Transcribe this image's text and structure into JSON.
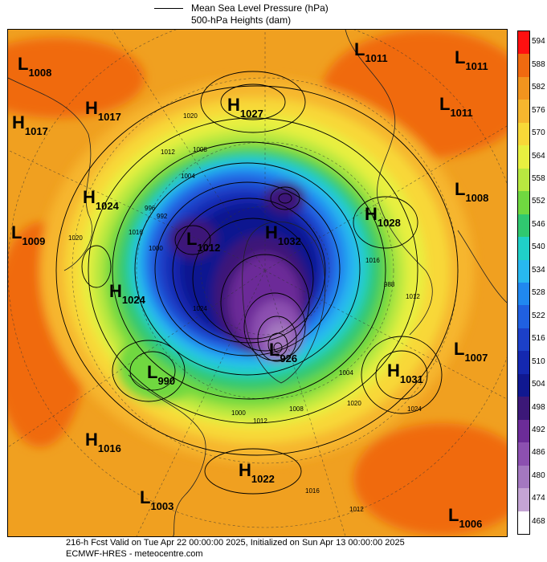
{
  "legend": {
    "items": [
      {
        "label": "Mean Sea Level Pressure (hPa)",
        "line": true
      },
      {
        "label": "500-hPa Heights (dam)",
        "line": false
      }
    ]
  },
  "colorbar": {
    "levels": [
      "594",
      "588",
      "582",
      "576",
      "570",
      "564",
      "558",
      "552",
      "546",
      "540",
      "534",
      "528",
      "522",
      "516",
      "510",
      "504",
      "498",
      "492",
      "486",
      "480",
      "474",
      "468"
    ],
    "colors": [
      "#ff1010",
      "#f06a10",
      "#f2941e",
      "#f6b62e",
      "#f8d838",
      "#e8f040",
      "#b8e840",
      "#70d840",
      "#30c870",
      "#20d0c8",
      "#28b8f0",
      "#2088f0",
      "#2060e0",
      "#1c40c8",
      "#1428b0",
      "#101890",
      "#3c1878",
      "#6c2c98",
      "#8c50b0",
      "#a478c0",
      "#c4a4d4",
      "#ffffff"
    ]
  },
  "centers": [
    {
      "type": "L",
      "value": "1008"
    },
    {
      "type": "H",
      "value": "1017"
    },
    {
      "type": "H",
      "value": "1017"
    },
    {
      "type": "H",
      "value": "1027"
    },
    {
      "type": "L",
      "value": "1011"
    },
    {
      "type": "L",
      "value": "1011"
    },
    {
      "type": "L",
      "value": "1011"
    },
    {
      "type": "H",
      "value": "1024"
    },
    {
      "type": "L",
      "value": "1008"
    },
    {
      "type": "H",
      "value": "1028"
    },
    {
      "type": "L",
      "value": "1009"
    },
    {
      "type": "L",
      "value": "1012"
    },
    {
      "type": "H",
      "value": "1032"
    },
    {
      "type": "H",
      "value": "1024"
    },
    {
      "type": "L",
      "value": "990"
    },
    {
      "type": "L",
      "value": "1007"
    },
    {
      "type": "H",
      "value": "1031"
    },
    {
      "type": "L",
      "value": "926"
    },
    {
      "type": "H",
      "value": "1016"
    },
    {
      "type": "H",
      "value": "1022"
    },
    {
      "type": "L",
      "value": "1003"
    },
    {
      "type": "L",
      "value": "1006"
    }
  ],
  "contour_labels": [
    "1020",
    "1012",
    "1008",
    "1004",
    "1016",
    "996",
    "992",
    "1000",
    "1024",
    "1020",
    "1012",
    "1016",
    "988",
    "1004",
    "1008",
    "1000",
    "1012",
    "1024",
    "1020",
    "1016",
    "1012"
  ],
  "footer": {
    "line1": "216-h Fcst Valid on Tue Apr 22 00:00:00 2025, Initialized on Sun Apr 13 00:00:00 2025",
    "line2": "ECMWF-HRES  - meteocentre.com"
  }
}
